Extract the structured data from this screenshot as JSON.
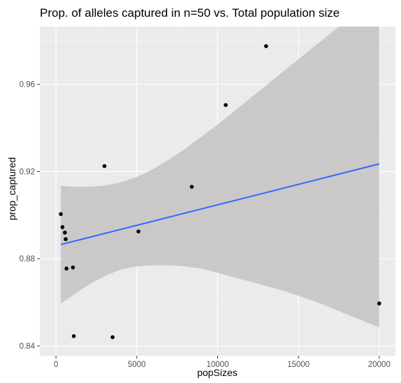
{
  "chart_data": {
    "type": "scatter",
    "title": "Prop. of alleles captured in n=50 vs. Total population size",
    "xlabel": "popSizes",
    "ylabel": "prop_captured",
    "xlim": [
      -1000,
      21000
    ],
    "ylim": [
      0.8355,
      0.9865
    ],
    "x_ticks": [
      0,
      5000,
      10000,
      15000,
      20000
    ],
    "x_tick_labels": [
      "0",
      "5000",
      "10000",
      "15000",
      "20000"
    ],
    "y_ticks": [
      0.84,
      0.88,
      0.92,
      0.96
    ],
    "y_tick_labels": [
      "0.84",
      "0.88",
      "0.92",
      "0.96"
    ],
    "grid": true,
    "points": [
      {
        "x": 300,
        "y": 0.9005
      },
      {
        "x": 400,
        "y": 0.8945
      },
      {
        "x": 550,
        "y": 0.892
      },
      {
        "x": 600,
        "y": 0.889
      },
      {
        "x": 650,
        "y": 0.8755
      },
      {
        "x": 1050,
        "y": 0.876
      },
      {
        "x": 1100,
        "y": 0.8445
      },
      {
        "x": 3000,
        "y": 0.9225
      },
      {
        "x": 3500,
        "y": 0.844
      },
      {
        "x": 5100,
        "y": 0.8925
      },
      {
        "x": 8400,
        "y": 0.913
      },
      {
        "x": 10500,
        "y": 0.9505
      },
      {
        "x": 13000,
        "y": 0.9775
      },
      {
        "x": 20000,
        "y": 0.8595
      }
    ],
    "trend_line": {
      "x": [
        300,
        20000
      ],
      "y": [
        0.8865,
        0.9235
      ]
    },
    "confidence_band": {
      "x": [
        300,
        1000,
        2000,
        3000,
        4000,
        5000,
        6000,
        7000,
        8000,
        9000,
        10000,
        11000,
        12000,
        13000,
        14000,
        15000,
        16000,
        17000,
        18000,
        19000,
        20000
      ],
      "upper": [
        0.9135,
        0.913,
        0.913,
        0.9135,
        0.915,
        0.9175,
        0.921,
        0.9255,
        0.9305,
        0.936,
        0.9415,
        0.9475,
        0.9535,
        0.9595,
        0.9655,
        0.9715,
        0.9775,
        0.9835,
        0.9895,
        0.995,
        1.001
      ],
      "lower": [
        0.8595,
        0.863,
        0.868,
        0.872,
        0.875,
        0.8765,
        0.877,
        0.877,
        0.8765,
        0.8755,
        0.8735,
        0.8715,
        0.8695,
        0.8675,
        0.8655,
        0.863,
        0.8605,
        0.8575,
        0.8545,
        0.8515,
        0.8485
      ]
    },
    "colors": {
      "panel": "#ebebeb",
      "grid_major": "#ffffff",
      "points": "#000000",
      "trend": "#3366ff",
      "band": "#bdbdbd"
    }
  }
}
